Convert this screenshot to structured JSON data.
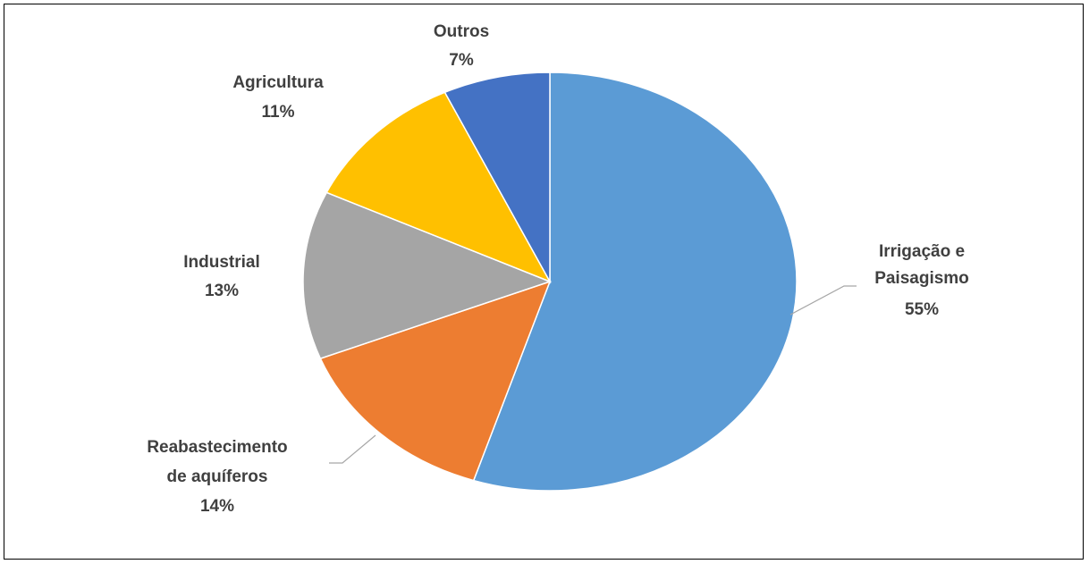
{
  "chart_data": {
    "type": "pie",
    "title": "",
    "slices": [
      {
        "name_lines": [
          "Irrigação e",
          "Paisagismo"
        ],
        "value": 55,
        "pct_label": "55%",
        "color": "#5B9BD5"
      },
      {
        "name_lines": [
          "Reabastecimento",
          "de aquíferos"
        ],
        "value": 14,
        "pct_label": "14%",
        "color": "#ED7D31"
      },
      {
        "name_lines": [
          "Industrial"
        ],
        "value": 13,
        "pct_label": "13%",
        "color": "#A5A5A5"
      },
      {
        "name_lines": [
          "Agricultura"
        ],
        "value": 11,
        "pct_label": "11%",
        "color": "#FFC000"
      },
      {
        "name_lines": [
          "Outros"
        ],
        "value": 7,
        "pct_label": "7%",
        "color": "#4472C4"
      }
    ],
    "legend": "none"
  }
}
